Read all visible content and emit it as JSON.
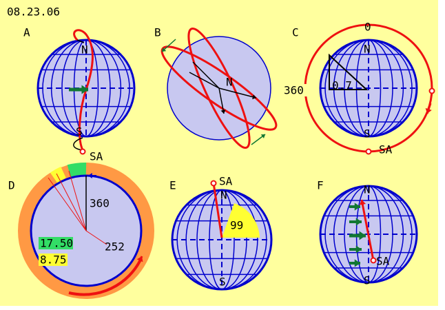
{
  "date": "08.23.06",
  "panels": [
    {
      "label": "A",
      "north": "N",
      "south": "S",
      "point": "SA"
    },
    {
      "label": "B",
      "north": "N"
    },
    {
      "label": "C",
      "north": "N",
      "south": "S",
      "point": "SA",
      "top": "0",
      "left": "360",
      "ratio": "0.7"
    },
    {
      "label": "D",
      "total": "360",
      "angle": "252",
      "green_value": "17.50",
      "yellow_value": "8.75"
    },
    {
      "label": "E",
      "north": "N",
      "south": "S",
      "point": "SA",
      "value": "99"
    },
    {
      "label": "F",
      "north": "N",
      "south": "S",
      "point": "SA"
    }
  ]
}
